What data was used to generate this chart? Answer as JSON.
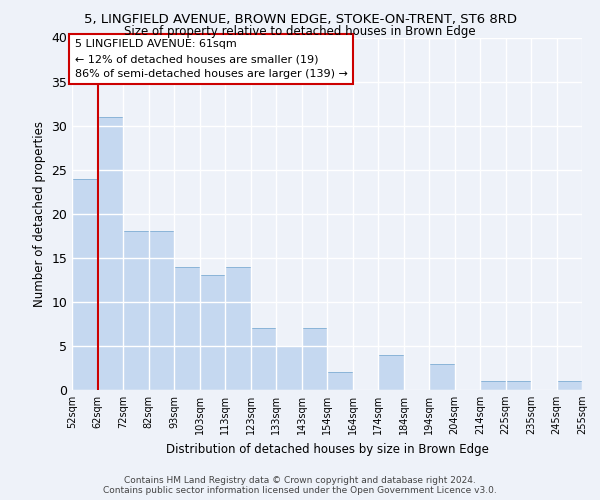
{
  "title": "5, LINGFIELD AVENUE, BROWN EDGE, STOKE-ON-TRENT, ST6 8RD",
  "subtitle": "Size of property relative to detached houses in Brown Edge",
  "xlabel": "Distribution of detached houses by size in Brown Edge",
  "ylabel": "Number of detached properties",
  "bin_labels": [
    "52sqm",
    "62sqm",
    "72sqm",
    "82sqm",
    "93sqm",
    "103sqm",
    "113sqm",
    "123sqm",
    "133sqm",
    "143sqm",
    "154sqm",
    "164sqm",
    "174sqm",
    "184sqm",
    "194sqm",
    "204sqm",
    "214sqm",
    "225sqm",
    "235sqm",
    "245sqm",
    "255sqm"
  ],
  "bar_heights": [
    24,
    31,
    18,
    18,
    14,
    13,
    14,
    7,
    5,
    7,
    2,
    0,
    4,
    0,
    3,
    0,
    1,
    1,
    0,
    1
  ],
  "bar_color": "#c5d8f0",
  "bar_edge_color": "#8ab4d8",
  "highlight_line_color": "#cc0000",
  "ylim": [
    0,
    40
  ],
  "yticks": [
    0,
    5,
    10,
    15,
    20,
    25,
    30,
    35,
    40
  ],
  "annotation_text": "5 LINGFIELD AVENUE: 61sqm\n← 12% of detached houses are smaller (19)\n86% of semi-detached houses are larger (139) →",
  "footer_line1": "Contains HM Land Registry data © Crown copyright and database right 2024.",
  "footer_line2": "Contains public sector information licensed under the Open Government Licence v3.0.",
  "bg_color": "#eef2f9",
  "grid_color": "#d8e0ee"
}
